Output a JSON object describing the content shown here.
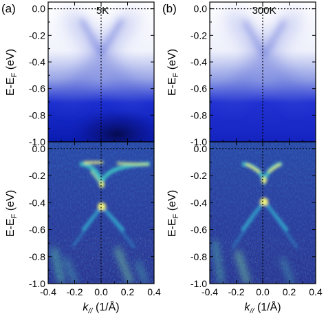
{
  "figure": {
    "panels": [
      {
        "label": "(a)",
        "temperature": "5K",
        "intensity_maps": [
          {
            "kind": "ARPES raw intensity",
            "colormap": "white-blue"
          },
          {
            "kind": "second-derivative intensity",
            "colormap": "dark-blue-cyan-yellow"
          }
        ]
      },
      {
        "label": "(b)",
        "temperature": "300K",
        "intensity_maps": [
          {
            "kind": "ARPES raw intensity",
            "colormap": "white-blue"
          },
          {
            "kind": "second-derivative intensity",
            "colormap": "dark-blue-cyan-yellow"
          }
        ]
      }
    ],
    "ylabel": "E-E",
    "ylabel_sub": "F",
    "ylabel_unit": "(eV)",
    "xlabel": "k",
    "xlabel_sub": "//",
    "xlabel_unit": "(1/Å)",
    "yticks": [
      "0.0",
      "-0.2",
      "-0.4",
      "-0.6",
      "-0.8",
      "-1.0"
    ],
    "xticks": [
      "-0.4",
      "-0.2",
      "0.0",
      "0.2",
      "0.4"
    ]
  },
  "chart_data": {
    "type": "heatmap",
    "xlim": [
      -0.4,
      0.4
    ],
    "ylim": [
      -1.0,
      0.05
    ],
    "ytick_values": [
      0.0,
      -0.2,
      -0.4,
      -0.6,
      -0.8,
      -1.0
    ],
    "xtick_values": [
      -0.4,
      -0.2,
      0.0,
      0.2,
      0.4
    ],
    "reference_lines": {
      "k": 0.0,
      "energy": 0.0,
      "style": "dotted"
    },
    "dirac_point_energy_eV": -0.37,
    "colors": {
      "raw_low": "#ffffff",
      "raw_high": "#0a0a6e",
      "deriv_low": "#2a3a9a",
      "deriv_mid": "#2fb2c8",
      "deriv_high": "#f2f27a"
    }
  }
}
